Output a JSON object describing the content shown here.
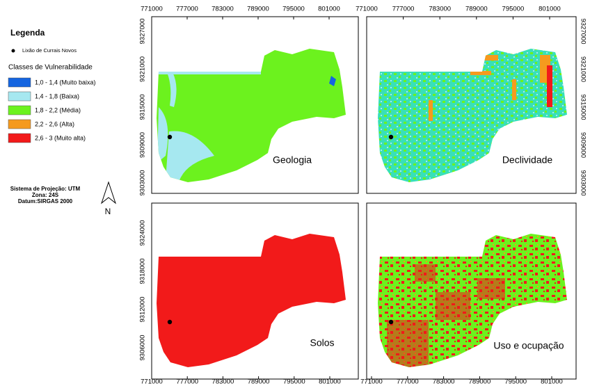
{
  "legend": {
    "title": "Legenda",
    "point_label": "Lixão de Currais Novos",
    "classes_title": "Classes de Vulnerabilidade",
    "classes": [
      {
        "label": "1,0 - 1,4 (Muito baixa)",
        "color": "#1565e0"
      },
      {
        "label": "1,4 - 1,8 (Baixa)",
        "color": "#a6e8f0"
      },
      {
        "label": "1,8 - 2,2 (Média)",
        "color": "#6cf21e"
      },
      {
        "label": "2,2 - 2,6 (Alta)",
        "color": "#f59a1e"
      },
      {
        "label": "2,6 - 3 (Muito alta)",
        "color": "#f21a1a"
      }
    ]
  },
  "projection": [
    "Sistema de Projeção: UTM",
    "Zona: 24S",
    "Datum:SIRGAS 2000"
  ],
  "north": "N",
  "panels": [
    {
      "title": "Geologia",
      "x_labels": [
        "771000",
        "777000",
        "783000",
        "789000",
        "795000",
        "801000"
      ],
      "y_labels": [
        "9327000",
        "9321000",
        "9315000",
        "9309000",
        "9303000"
      ]
    },
    {
      "title": "Declividade",
      "x_labels": [
        "771000",
        "777000",
        "783000",
        "789000",
        "795000",
        "801000"
      ],
      "y_labels": [
        "9327000",
        "9321000",
        "9315000",
        "9309000",
        "9303000"
      ]
    },
    {
      "title": "Solos",
      "x_labels": [
        "771000",
        "777000",
        "783000",
        "789000",
        "795000",
        "801000"
      ],
      "y_labels": [
        "9324000",
        "9318000",
        "9312000",
        "9306000"
      ]
    },
    {
      "title": "Uso e ocupação",
      "x_labels": [
        "771000",
        "777000",
        "783000",
        "789000",
        "795000",
        "801000"
      ]
    }
  ]
}
